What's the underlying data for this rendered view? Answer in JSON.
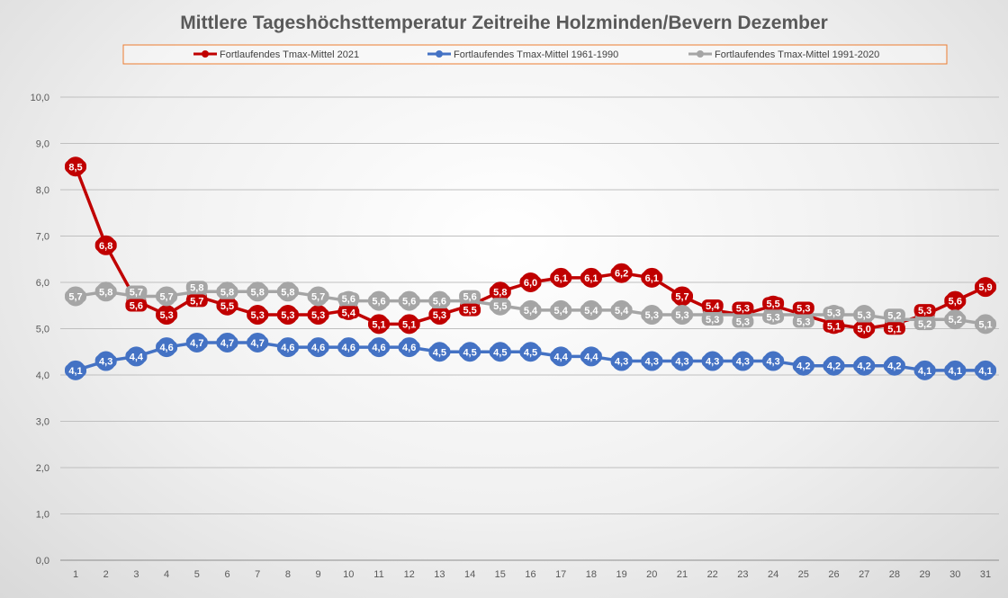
{
  "chart_data": {
    "type": "line",
    "title": "Mittlere Tageshöchsttemperatur Zeitreihe Holzminden/Bevern Dezember",
    "xlabel": "",
    "ylabel": "",
    "x": [
      1,
      2,
      3,
      4,
      5,
      6,
      7,
      8,
      9,
      10,
      11,
      12,
      13,
      14,
      15,
      16,
      17,
      18,
      19,
      20,
      21,
      22,
      23,
      24,
      25,
      26,
      27,
      28,
      29,
      30,
      31
    ],
    "ylim": [
      0,
      10
    ],
    "yticks": [
      "0,0",
      "1,0",
      "2,0",
      "3,0",
      "4,0",
      "5,0",
      "6,0",
      "7,0",
      "8,0",
      "9,0",
      "10,0"
    ],
    "grid": true,
    "legend_position": "top",
    "series": [
      {
        "name": "Fortlaufendes Tmax-Mittel 2021",
        "color": "#c00000",
        "values": [
          8.5,
          6.8,
          5.6,
          5.3,
          5.7,
          5.5,
          5.3,
          5.3,
          5.3,
          5.4,
          5.1,
          5.1,
          5.3,
          5.5,
          5.8,
          6.0,
          6.1,
          6.1,
          6.2,
          6.1,
          5.7,
          5.4,
          5.3,
          5.5,
          5.3,
          5.1,
          5.0,
          5.1,
          5.3,
          5.6,
          5.9
        ]
      },
      {
        "name": "Fortlaufendes Tmax-Mittel 1961-1990",
        "color": "#4472c4",
        "values": [
          4.1,
          4.3,
          4.4,
          4.6,
          4.7,
          4.7,
          4.7,
          4.6,
          4.6,
          4.6,
          4.6,
          4.6,
          4.5,
          4.5,
          4.5,
          4.5,
          4.4,
          4.4,
          4.3,
          4.3,
          4.3,
          4.3,
          4.3,
          4.3,
          4.2,
          4.2,
          4.2,
          4.2,
          4.1,
          4.1,
          4.1
        ]
      },
      {
        "name": "Fortlaufendes Tmax-Mittel 1991-2020",
        "color": "#a5a5a5",
        "values": [
          5.7,
          5.8,
          5.7,
          5.7,
          5.8,
          5.8,
          5.8,
          5.8,
          5.7,
          5.6,
          5.6,
          5.6,
          5.6,
          5.6,
          5.5,
          5.4,
          5.4,
          5.4,
          5.4,
          5.3,
          5.3,
          5.3,
          5.3,
          5.3,
          5.3,
          5.3,
          5.3,
          5.2,
          5.2,
          5.2,
          5.1
        ]
      }
    ]
  }
}
